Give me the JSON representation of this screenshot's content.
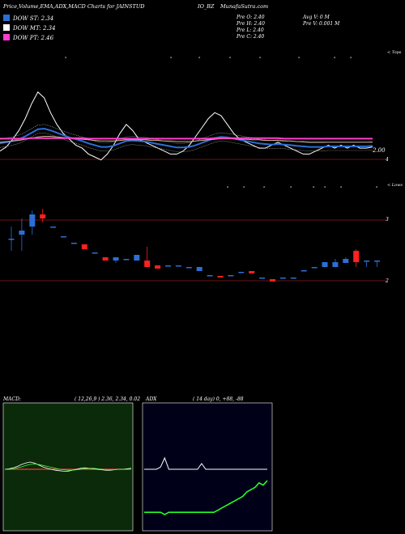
{
  "header": {
    "title": "Price,Volume,EMA,ADX,MACD Charts for JAINSTUD",
    "title_cont": "IO_BZ",
    "site": "MunafaSutra.com"
  },
  "legend": [
    {
      "label": "DOW ST: 2.34",
      "color": "#2b6fd6"
    },
    {
      "label": "DOW MT: 2.34",
      "color": "#ffffff"
    },
    {
      "label": "DOW PT: 2.46",
      "color": "#ff3ccf"
    }
  ],
  "ohlc": {
    "open": "Pre  O: 2.40",
    "high": "Pre  H: 2.40",
    "low": "Pre  L: 2.40",
    "close": "Pre  C: 2.40",
    "avg_volume": "Avg V: 0  M",
    "volume": "Pre  V: 0.001 M"
  },
  "price_chart": {
    "tops_label": "< Tops",
    "lows_label": "< Lows",
    "last_price_label": "2.00",
    "axis_labels": [
      "4",
      "3",
      "2"
    ],
    "top_marks": [
      "a",
      "b",
      "c",
      "d",
      "e",
      "f",
      "g",
      "h"
    ],
    "low_marks": [
      "i",
      "j",
      "k",
      "l",
      "m",
      "n",
      "o",
      "p"
    ]
  },
  "chart_data": [
    {
      "type": "line",
      "name": "price-ema-panel",
      "x": [
        0,
        1,
        2,
        3,
        4,
        5,
        6,
        7,
        8,
        9,
        10,
        11,
        12,
        13,
        14,
        15,
        16,
        17,
        18,
        19,
        20,
        21,
        22,
        23,
        24,
        25,
        26,
        27,
        28,
        29,
        30,
        31,
        32,
        33,
        34,
        35,
        36,
        37,
        38,
        39,
        40,
        41,
        42,
        43,
        44,
        45,
        46,
        47,
        48,
        49,
        50,
        51,
        52,
        53,
        54,
        55,
        56,
        57,
        58,
        59
      ],
      "series": [
        {
          "values": [
            2.25,
            2.32,
            2.45,
            2.6,
            2.8,
            3.05,
            3.25,
            3.15,
            2.9,
            2.7,
            2.55,
            2.45,
            2.35,
            2.3,
            2.2,
            2.15,
            2.1,
            2.2,
            2.35,
            2.55,
            2.7,
            2.6,
            2.45,
            2.4,
            2.35,
            2.3,
            2.25,
            2.2,
            2.2,
            2.25,
            2.35,
            2.5,
            2.65,
            2.8,
            2.9,
            2.85,
            2.7,
            2.55,
            2.45,
            2.4,
            2.35,
            2.3,
            2.3,
            2.35,
            2.4,
            2.35,
            2.3,
            2.25,
            2.2,
            2.2,
            2.25,
            2.3,
            2.35,
            2.3,
            2.35,
            2.3,
            2.35,
            2.3,
            2.3,
            2.32
          ]
        },
        {
          "values": [
            2.38,
            2.4,
            2.42,
            2.45,
            2.5,
            2.56,
            2.62,
            2.63,
            2.6,
            2.56,
            2.52,
            2.48,
            2.45,
            2.42,
            2.38,
            2.35,
            2.32,
            2.32,
            2.34,
            2.38,
            2.42,
            2.43,
            2.42,
            2.41,
            2.39,
            2.37,
            2.35,
            2.33,
            2.31,
            2.31,
            2.32,
            2.35,
            2.39,
            2.43,
            2.47,
            2.49,
            2.48,
            2.46,
            2.44,
            2.42,
            2.4,
            2.38,
            2.37,
            2.36,
            2.37,
            2.36,
            2.35,
            2.34,
            2.33,
            2.32,
            2.32,
            2.32,
            2.33,
            2.33,
            2.33,
            2.33,
            2.33,
            2.33,
            2.33,
            2.34
          ]
        },
        {
          "values": [
            2.4,
            2.41,
            2.42,
            2.43,
            2.45,
            2.47,
            2.49,
            2.5,
            2.5,
            2.49,
            2.48,
            2.47,
            2.46,
            2.45,
            2.44,
            2.43,
            2.42,
            2.42,
            2.42,
            2.43,
            2.44,
            2.44,
            2.44,
            2.44,
            2.43,
            2.43,
            2.42,
            2.42,
            2.41,
            2.41,
            2.41,
            2.42,
            2.43,
            2.44,
            2.45,
            2.46,
            2.46,
            2.46,
            2.45,
            2.45,
            2.44,
            2.44,
            2.43,
            2.43,
            2.43,
            2.42,
            2.42,
            2.41,
            2.41,
            2.4,
            2.4,
            2.4,
            2.4,
            2.4,
            2.4,
            2.4,
            2.4,
            2.4,
            2.4,
            2.4
          ]
        },
        {
          "values": [
            2.46,
            2.46,
            2.46,
            2.46,
            2.46,
            2.47,
            2.47,
            2.47,
            2.47,
            2.47,
            2.47,
            2.47,
            2.47,
            2.47,
            2.46,
            2.46,
            2.46,
            2.46,
            2.46,
            2.46,
            2.46,
            2.46,
            2.46,
            2.46,
            2.46,
            2.46,
            2.46,
            2.46,
            2.46,
            2.46,
            2.46,
            2.46,
            2.46,
            2.46,
            2.47,
            2.47,
            2.47,
            2.47,
            2.47,
            2.47,
            2.47,
            2.47,
            2.47,
            2.47,
            2.47,
            2.46,
            2.46,
            2.46,
            2.46,
            2.46,
            2.46,
            2.46,
            2.46,
            2.46,
            2.46,
            2.46,
            2.46,
            2.46,
            2.46,
            2.46
          ]
        }
      ]
    },
    {
      "type": "bar",
      "name": "candles",
      "values": [
        {
          "o": 2.45,
          "c": 2.45,
          "h": 2.6,
          "l": 2.3,
          "up": true
        },
        {
          "o": 2.5,
          "c": 2.55,
          "h": 2.7,
          "l": 2.3,
          "up": true
        },
        {
          "o": 2.6,
          "c": 2.75,
          "h": 2.8,
          "l": 2.5,
          "up": true
        },
        {
          "o": 2.75,
          "c": 2.7,
          "h": 2.82,
          "l": 2.65,
          "up": false
        },
        {
          "o": 2.6,
          "c": 2.6,
          "h": 2.6,
          "l": 2.6,
          "up": true
        },
        {
          "o": 2.48,
          "c": 2.48,
          "h": 2.48,
          "l": 2.48,
          "up": true
        },
        {
          "o": 2.4,
          "c": 2.4,
          "h": 2.4,
          "l": 2.4,
          "up": true
        },
        {
          "o": 2.38,
          "c": 2.32,
          "h": 2.38,
          "l": 2.32,
          "up": false
        },
        {
          "o": 2.28,
          "c": 2.28,
          "h": 2.28,
          "l": 2.28,
          "up": true
        },
        {
          "o": 2.22,
          "c": 2.18,
          "h": 2.22,
          "l": 2.18,
          "up": false
        },
        {
          "o": 2.22,
          "c": 2.18,
          "h": 2.22,
          "l": 2.15,
          "up": true
        },
        {
          "o": 2.2,
          "c": 2.2,
          "h": 2.2,
          "l": 2.2,
          "up": true
        },
        {
          "o": 2.18,
          "c": 2.25,
          "h": 2.25,
          "l": 2.18,
          "up": true
        },
        {
          "o": 2.18,
          "c": 2.1,
          "h": 2.35,
          "l": 2.1,
          "up": false
        },
        {
          "o": 2.12,
          "c": 2.08,
          "h": 2.12,
          "l": 2.08,
          "up": false
        },
        {
          "o": 2.12,
          "c": 2.12,
          "h": 2.12,
          "l": 2.12,
          "up": true
        },
        {
          "o": 2.12,
          "c": 2.12,
          "h": 2.12,
          "l": 2.12,
          "up": true
        },
        {
          "o": 2.1,
          "c": 2.1,
          "h": 2.1,
          "l": 2.1,
          "up": true
        },
        {
          "o": 2.1,
          "c": 2.05,
          "h": 2.1,
          "l": 2.05,
          "up": true
        },
        {
          "o": 2.0,
          "c": 2.0,
          "h": 2.0,
          "l": 2.0,
          "up": true
        },
        {
          "o": 1.99,
          "c": 1.97,
          "h": 1.99,
          "l": 1.97,
          "up": false
        },
        {
          "o": 2.0,
          "c": 2.0,
          "h": 2.0,
          "l": 2.0,
          "up": true
        },
        {
          "o": 2.04,
          "c": 2.04,
          "h": 2.04,
          "l": 2.04,
          "up": true
        },
        {
          "o": 2.05,
          "c": 2.02,
          "h": 2.05,
          "l": 2.02,
          "up": false
        },
        {
          "o": 1.97,
          "c": 1.97,
          "h": 1.97,
          "l": 1.97,
          "up": true
        },
        {
          "o": 1.95,
          "c": 1.92,
          "h": 1.95,
          "l": 1.92,
          "up": false
        },
        {
          "o": 1.97,
          "c": 1.97,
          "h": 1.97,
          "l": 1.97,
          "up": true
        },
        {
          "o": 1.97,
          "c": 1.97,
          "h": 1.97,
          "l": 1.97,
          "up": true
        },
        {
          "o": 2.06,
          "c": 2.06,
          "h": 2.06,
          "l": 2.06,
          "up": true
        },
        {
          "o": 2.1,
          "c": 2.1,
          "h": 2.1,
          "l": 2.1,
          "up": true
        },
        {
          "o": 2.1,
          "c": 2.16,
          "h": 2.16,
          "l": 2.1,
          "up": true
        },
        {
          "o": 2.1,
          "c": 2.16,
          "h": 2.2,
          "l": 2.1,
          "up": true
        },
        {
          "o": 2.15,
          "c": 2.2,
          "h": 2.22,
          "l": 2.15,
          "up": true
        },
        {
          "o": 2.3,
          "c": 2.16,
          "h": 2.32,
          "l": 2.1,
          "up": false
        },
        {
          "o": 2.18,
          "c": 2.18,
          "h": 2.18,
          "l": 2.1,
          "up": true
        },
        {
          "o": 2.18,
          "c": 2.18,
          "h": 2.18,
          "l": 2.1,
          "up": true
        }
      ]
    },
    {
      "type": "line",
      "name": "macd-panel",
      "x": [
        0,
        1,
        2,
        3,
        4,
        5,
        6,
        7,
        8,
        9,
        10,
        11,
        12,
        13,
        14,
        15,
        16,
        17,
        18,
        19,
        20,
        21,
        22,
        23,
        24,
        25,
        26,
        27,
        28,
        29,
        30
      ],
      "series": [
        {
          "values": [
            0.0,
            0.01,
            0.03,
            0.06,
            0.1,
            0.13,
            0.15,
            0.13,
            0.09,
            0.05,
            0.02,
            0.0,
            -0.02,
            -0.03,
            -0.04,
            -0.04,
            -0.02,
            0.0,
            0.02,
            0.03,
            0.02,
            0.01,
            0.0,
            -0.01,
            -0.02,
            -0.02,
            -0.01,
            0.0,
            0.0,
            0.01,
            0.02
          ]
        },
        {
          "values": [
            0.0,
            0.0,
            0.01,
            0.03,
            0.05,
            0.08,
            0.1,
            0.11,
            0.1,
            0.08,
            0.06,
            0.04,
            0.02,
            0.0,
            -0.01,
            -0.02,
            -0.02,
            -0.01,
            0.0,
            0.01,
            0.02,
            0.02,
            0.01,
            0.0,
            -0.01,
            -0.01,
            -0.01,
            0.0,
            0.0,
            0.0,
            0.01
          ]
        }
      ]
    },
    {
      "type": "line",
      "name": "adx-panel",
      "x": [
        0,
        1,
        2,
        3,
        4,
        5,
        6,
        7,
        8,
        9,
        10,
        11,
        12,
        13,
        14,
        15,
        16,
        17,
        18,
        19,
        20,
        21,
        22,
        23,
        24,
        25,
        26,
        27,
        28,
        29,
        30
      ],
      "series": [
        {
          "values": [
            50,
            50,
            50,
            50,
            52,
            60,
            50,
            50,
            50,
            50,
            50,
            50,
            50,
            50,
            55,
            50,
            50,
            50,
            50,
            50,
            50,
            50,
            50,
            50,
            50,
            50,
            50,
            50,
            50,
            50,
            50
          ]
        },
        {
          "values": [
            12,
            12,
            12,
            12,
            12,
            10,
            12,
            12,
            12,
            12,
            12,
            12,
            12,
            12,
            12,
            12,
            12,
            12,
            14,
            16,
            18,
            20,
            22,
            24,
            26,
            30,
            32,
            34,
            38,
            36,
            40
          ]
        }
      ]
    }
  ],
  "macd": {
    "label": "MACD:",
    "params": "( 12,26,9 ) 2.36,  2.34,  0.02"
  },
  "adx": {
    "label": "ADX",
    "params": "( 14  day) 0,  +88, -88"
  }
}
